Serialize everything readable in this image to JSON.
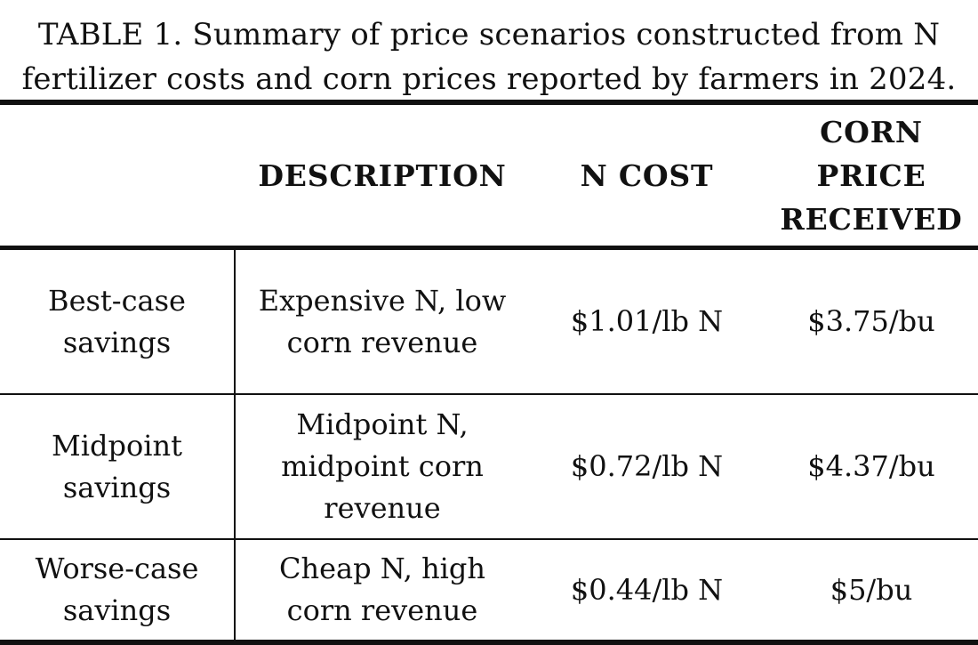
{
  "table": {
    "caption_line1": "TABLE 1. Summary of price scenarios constructed from N",
    "caption_line2": "fertilizer costs and corn prices reported by farmers in 2024.",
    "headers": {
      "col0": "",
      "description": "DESCRIPTION",
      "n_cost": "N COST",
      "corn_price_line1": "CORN",
      "corn_price_line2": "PRICE",
      "corn_price_line3": "RECEIVED"
    },
    "rows": [
      {
        "scenario_line1": "Best-case",
        "scenario_line2": "savings",
        "description_line1": "Expensive N, low",
        "description_line2": "corn revenue",
        "description_line3": "",
        "n_cost": "$1.01/lb N",
        "corn_price": "$3.75/bu"
      },
      {
        "scenario_line1": "Midpoint",
        "scenario_line2": "savings",
        "description_line1": "Midpoint N,",
        "description_line2": "midpoint corn",
        "description_line3": "revenue",
        "n_cost": "$0.72/lb N",
        "corn_price": "$4.37/bu"
      },
      {
        "scenario_line1": "Worse-case",
        "scenario_line2": "savings",
        "description_line1": "Cheap N, high",
        "description_line2": "corn revenue",
        "description_line3": "",
        "n_cost": "$0.44/lb N",
        "corn_price": "$5/bu"
      }
    ]
  }
}
